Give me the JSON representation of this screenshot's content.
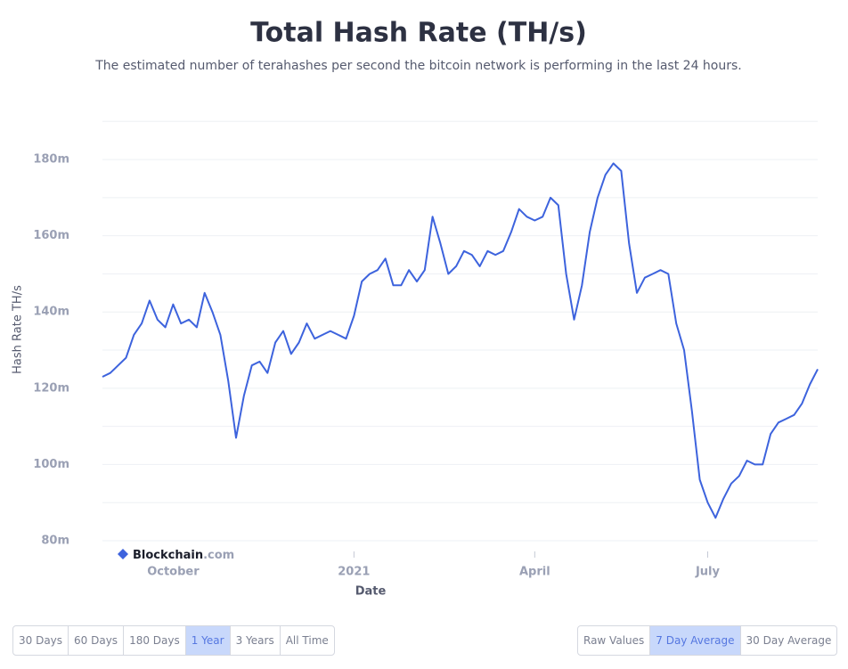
{
  "chart_data": {
    "type": "line",
    "title": "Total Hash Rate (TH/s)",
    "subtitle": "The estimated number of terahashes per second the bitcoin network is performing in the last 24 hours.",
    "y_label": "Hash Rate TH/s",
    "x_label": "Date",
    "categories": [
      null,
      null,
      null,
      null,
      null,
      null,
      null,
      null,
      null,
      "October",
      null,
      null,
      null,
      null,
      null,
      null,
      null,
      null,
      null,
      null,
      null,
      null,
      null,
      null,
      null,
      null,
      null,
      null,
      null,
      null,
      null,
      null,
      "2021",
      null,
      null,
      null,
      null,
      null,
      null,
      null,
      null,
      null,
      null,
      null,
      null,
      null,
      null,
      null,
      null,
      null,
      null,
      null,
      null,
      null,
      null,
      "April",
      null,
      null,
      null,
      null,
      null,
      null,
      null,
      null,
      null,
      null,
      null,
      null,
      null,
      null,
      null,
      null,
      null,
      null,
      null,
      null,
      null,
      "July",
      null,
      null,
      null,
      null,
      null,
      null,
      null,
      null,
      null,
      null,
      null,
      null,
      null,
      null
    ],
    "series": [
      {
        "name": "Hash Rate",
        "color": "#3d63dd",
        "values": [
          123000000,
          124000000,
          126000000,
          128000000,
          134000000,
          137000000,
          143000000,
          138000000,
          136000000,
          142000000,
          137000000,
          138000000,
          136000000,
          145000000,
          140000000,
          134000000,
          122000000,
          107000000,
          118000000,
          126000000,
          127000000,
          124000000,
          132000000,
          135000000,
          129000000,
          132000000,
          137000000,
          133000000,
          134000000,
          135000000,
          134000000,
          133000000,
          139000000,
          148000000,
          150000000,
          151000000,
          154000000,
          147000000,
          147000000,
          151000000,
          148000000,
          151000000,
          165000000,
          158000000,
          150000000,
          152000000,
          156000000,
          155000000,
          152000000,
          156000000,
          155000000,
          156000000,
          161000000,
          167000000,
          165000000,
          164000000,
          165000000,
          170000000,
          168000000,
          150000000,
          138000000,
          147000000,
          161000000,
          170000000,
          176000000,
          179000000,
          177000000,
          158000000,
          145000000,
          149000000,
          150000000,
          151000000,
          150000000,
          137000000,
          130000000,
          114000000,
          96000000,
          90000000,
          86000000,
          91000000,
          95000000,
          97000000,
          101000000,
          100000000,
          100000000,
          108000000,
          111000000,
          112000000,
          113000000,
          116000000,
          121000000,
          125000000
        ]
      }
    ],
    "ylim": [
      80000000,
      191000000
    ],
    "yticks": [
      {
        "value": 80000000,
        "label": "80m"
      },
      {
        "value": 100000000,
        "label": "100m"
      },
      {
        "value": 120000000,
        "label": "120m"
      },
      {
        "value": 140000000,
        "label": "140m"
      },
      {
        "value": 160000000,
        "label": "160m"
      },
      {
        "value": 180000000,
        "label": "180m"
      }
    ],
    "minor_yticks": [
      90000000,
      110000000,
      130000000,
      150000000,
      170000000,
      190000000
    ],
    "grid": true
  },
  "watermark": {
    "brand": "Blockchain",
    "suffix": ".com"
  },
  "controls": {
    "periods": [
      "30 Days",
      "60 Days",
      "180 Days",
      "1 Year",
      "3 Years",
      "All Time"
    ],
    "active_period": 3,
    "averages": [
      "Raw Values",
      "7 Day Average",
      "30 Day Average"
    ],
    "active_average": 1
  }
}
